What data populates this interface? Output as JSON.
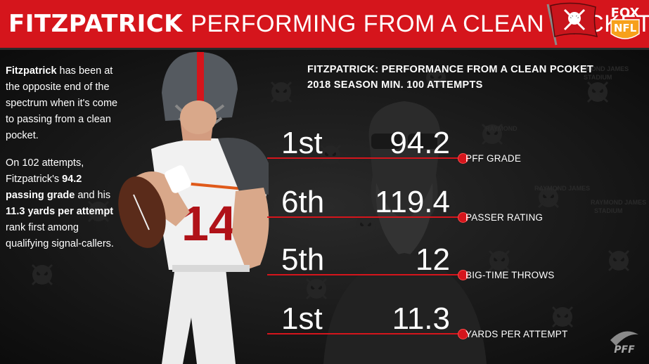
{
  "header": {
    "title_name": "FITZPATRICK",
    "title_rest": "PERFORMING FROM A CLEAN POCKET",
    "bg_color": "#d5151c"
  },
  "logos": {
    "fox_top": "FOX",
    "fox_bottom": "NFL",
    "pff": "PFF"
  },
  "sidebar": {
    "p1_bold": "Fitzpatrick",
    "p1_rest": " has been at the opposite end of the spectrum when it's come to passing from a clean pocket.",
    "p2_a": "On 102 attempts, Fitzpatrick's ",
    "p2_b": "94.2 passing grade",
    "p2_c": " and his ",
    "p2_d": "11.3 yards per attempt",
    "p2_e": " rank first among qualifying signal-callers."
  },
  "chart": {
    "title_line1": "FITZPATRICK: PERFORMANCE FROM A CLEAN PCOKET",
    "title_line2": "2018 SEASON MIN. 100 ATTEMPTS",
    "accent": "#d5151c",
    "stats": [
      {
        "rank": "1st",
        "value": "94.2",
        "label": "PFF GRADE"
      },
      {
        "rank": "6th",
        "value": "119.4",
        "label": "PASSER RATING"
      },
      {
        "rank": "5th",
        "value": "12",
        "label": "BIG-TIME THROWS"
      },
      {
        "rank": "1st",
        "value": "11.3",
        "label": "YARDS PER ATTEMPT"
      }
    ]
  }
}
